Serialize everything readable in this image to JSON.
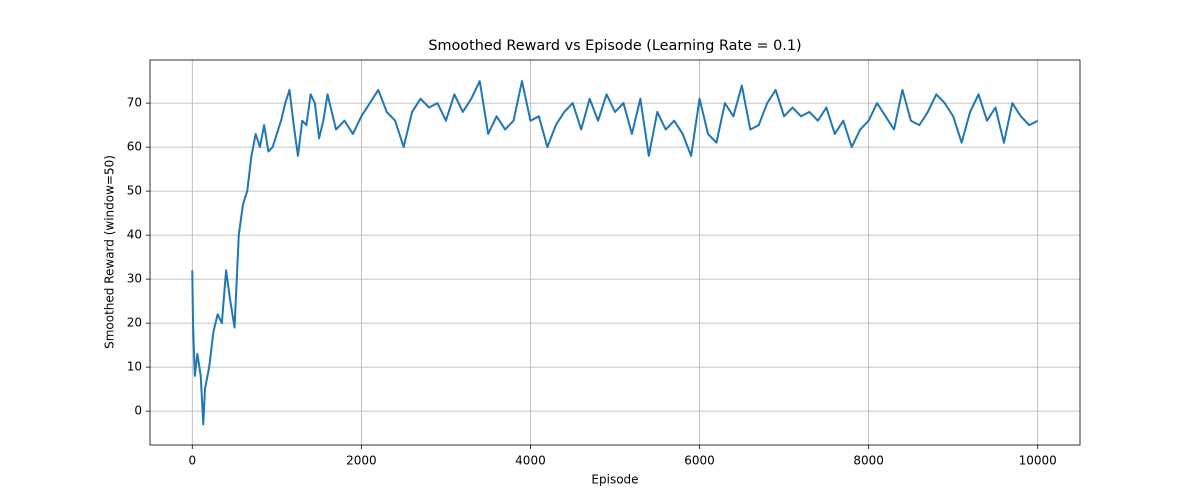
{
  "chart_data": {
    "type": "line",
    "title": "Smoothed Reward vs Episode (Learning Rate = 0.1)",
    "xlabel": "Episode",
    "ylabel": "Smoothed Reward (window=50)",
    "color": "#1f77b4",
    "grid": true,
    "xlim": [
      -500,
      10500
    ],
    "ylim": [
      -7.7,
      79.8
    ],
    "xticks": [
      0,
      2000,
      4000,
      6000,
      8000,
      10000
    ],
    "yticks": [
      0,
      10,
      20,
      30,
      40,
      50,
      60,
      70
    ],
    "x": [
      0,
      10,
      30,
      60,
      100,
      130,
      150,
      200,
      250,
      300,
      350,
      400,
      450,
      500,
      550,
      600,
      650,
      700,
      750,
      800,
      850,
      900,
      950,
      1000,
      1050,
      1100,
      1150,
      1200,
      1250,
      1300,
      1350,
      1400,
      1450,
      1500,
      1550,
      1600,
      1650,
      1700,
      1800,
      1900,
      2000,
      2100,
      2200,
      2300,
      2400,
      2500,
      2600,
      2700,
      2800,
      2900,
      3000,
      3100,
      3200,
      3300,
      3400,
      3500,
      3600,
      3700,
      3800,
      3900,
      4000,
      4100,
      4200,
      4300,
      4400,
      4500,
      4600,
      4700,
      4800,
      4900,
      5000,
      5100,
      5200,
      5300,
      5400,
      5500,
      5600,
      5700,
      5800,
      5900,
      6000,
      6100,
      6200,
      6300,
      6400,
      6500,
      6600,
      6700,
      6800,
      6900,
      7000,
      7100,
      7200,
      7300,
      7400,
      7500,
      7600,
      7700,
      7800,
      7900,
      8000,
      8100,
      8200,
      8300,
      8400,
      8500,
      8600,
      8700,
      8800,
      8900,
      9000,
      9100,
      9200,
      9300,
      9400,
      9500,
      9600,
      9700,
      9800,
      9900,
      10000
    ],
    "values": [
      32,
      19,
      8,
      13,
      8,
      -3,
      5,
      10,
      18,
      22,
      20,
      32,
      25,
      19,
      40,
      47,
      50,
      58,
      63,
      60,
      65,
      59,
      60,
      63,
      66,
      70,
      73,
      65,
      58,
      66,
      65,
      72,
      70,
      62,
      66,
      72,
      68,
      64,
      66,
      63,
      67,
      70,
      73,
      68,
      66,
      60,
      68,
      71,
      69,
      70,
      66,
      72,
      68,
      71,
      75,
      63,
      67,
      64,
      66,
      75,
      66,
      67,
      60,
      65,
      68,
      70,
      64,
      71,
      66,
      72,
      68,
      70,
      63,
      71,
      58,
      68,
      64,
      66,
      63,
      58,
      71,
      63,
      61,
      70,
      67,
      74,
      64,
      65,
      70,
      73,
      67,
      69,
      67,
      68,
      66,
      69,
      63,
      66,
      60,
      64,
      66,
      70,
      67,
      64,
      73,
      66,
      65,
      68,
      72,
      70,
      67,
      61,
      68,
      72,
      66,
      69,
      61,
      70,
      67,
      65,
      66
    ]
  }
}
